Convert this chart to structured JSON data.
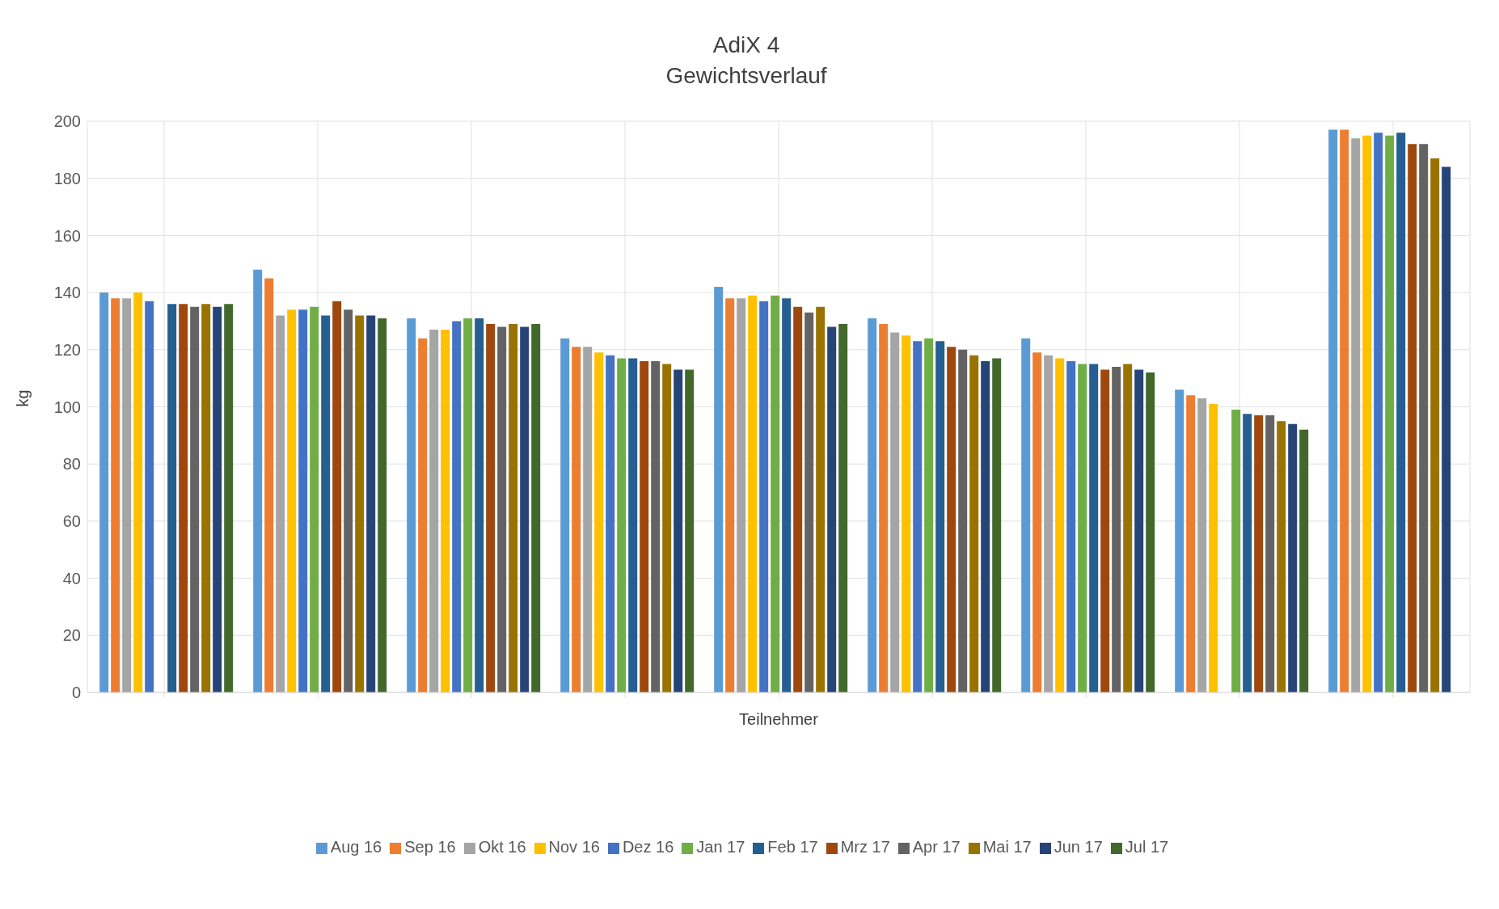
{
  "chart_data": {
    "type": "bar",
    "title": "AdiX 4",
    "subtitle": "Gewichtsverlauf",
    "xlabel": "Teilnehmer",
    "ylabel": "kg",
    "categories": [
      null,
      null,
      null,
      null,
      null,
      null,
      null,
      null,
      null
    ],
    "series": [
      {
        "name": "Aug 16",
        "color": "#5b9bd5",
        "values": [
          140,
          148,
          131,
          124,
          142,
          131,
          124,
          106,
          197
        ]
      },
      {
        "name": "Sep 16",
        "color": "#ed7d31",
        "values": [
          138,
          145,
          124,
          121,
          138,
          129,
          119,
          104,
          197
        ]
      },
      {
        "name": "Okt 16",
        "color": "#a5a5a5",
        "values": [
          138,
          132,
          127,
          121,
          138,
          126,
          118,
          103,
          194
        ]
      },
      {
        "name": "Nov 16",
        "color": "#ffc000",
        "values": [
          140,
          134,
          127,
          119,
          139,
          125,
          117,
          101,
          195
        ]
      },
      {
        "name": "Dez 16",
        "color": "#4472c4",
        "values": [
          137,
          134,
          130,
          118,
          137,
          123,
          116,
          null,
          196
        ]
      },
      {
        "name": "Jan 17",
        "color": "#70ad47",
        "values": [
          null,
          135,
          131,
          117,
          139,
          124,
          115,
          99,
          195
        ]
      },
      {
        "name": "Feb 17",
        "color": "#255e91",
        "values": [
          136,
          132,
          131,
          117,
          138,
          123,
          115,
          97.5,
          196
        ]
      },
      {
        "name": "Mrz 17",
        "color": "#9e480e",
        "values": [
          136,
          137,
          129,
          116,
          135,
          121,
          113,
          97,
          192
        ]
      },
      {
        "name": "Apr 17",
        "color": "#636363",
        "values": [
          135,
          134,
          128,
          116,
          133,
          120,
          114,
          97,
          192
        ]
      },
      {
        "name": "Mai 17",
        "color": "#997300",
        "values": [
          136,
          132,
          129,
          115,
          135,
          118,
          115,
          95,
          187
        ]
      },
      {
        "name": "Jun 17",
        "color": "#264478",
        "values": [
          135,
          132,
          128,
          113,
          128,
          116,
          113,
          94,
          184
        ]
      },
      {
        "name": "Jul 17",
        "color": "#43682b",
        "values": [
          136,
          131,
          129,
          113,
          129,
          117,
          112,
          92,
          null
        ]
      }
    ],
    "ylim": [
      0,
      200
    ],
    "yticks": [
      0,
      20,
      40,
      60,
      80,
      100,
      120,
      140,
      160,
      180,
      200
    ],
    "grid": true,
    "legend": "bottom"
  }
}
